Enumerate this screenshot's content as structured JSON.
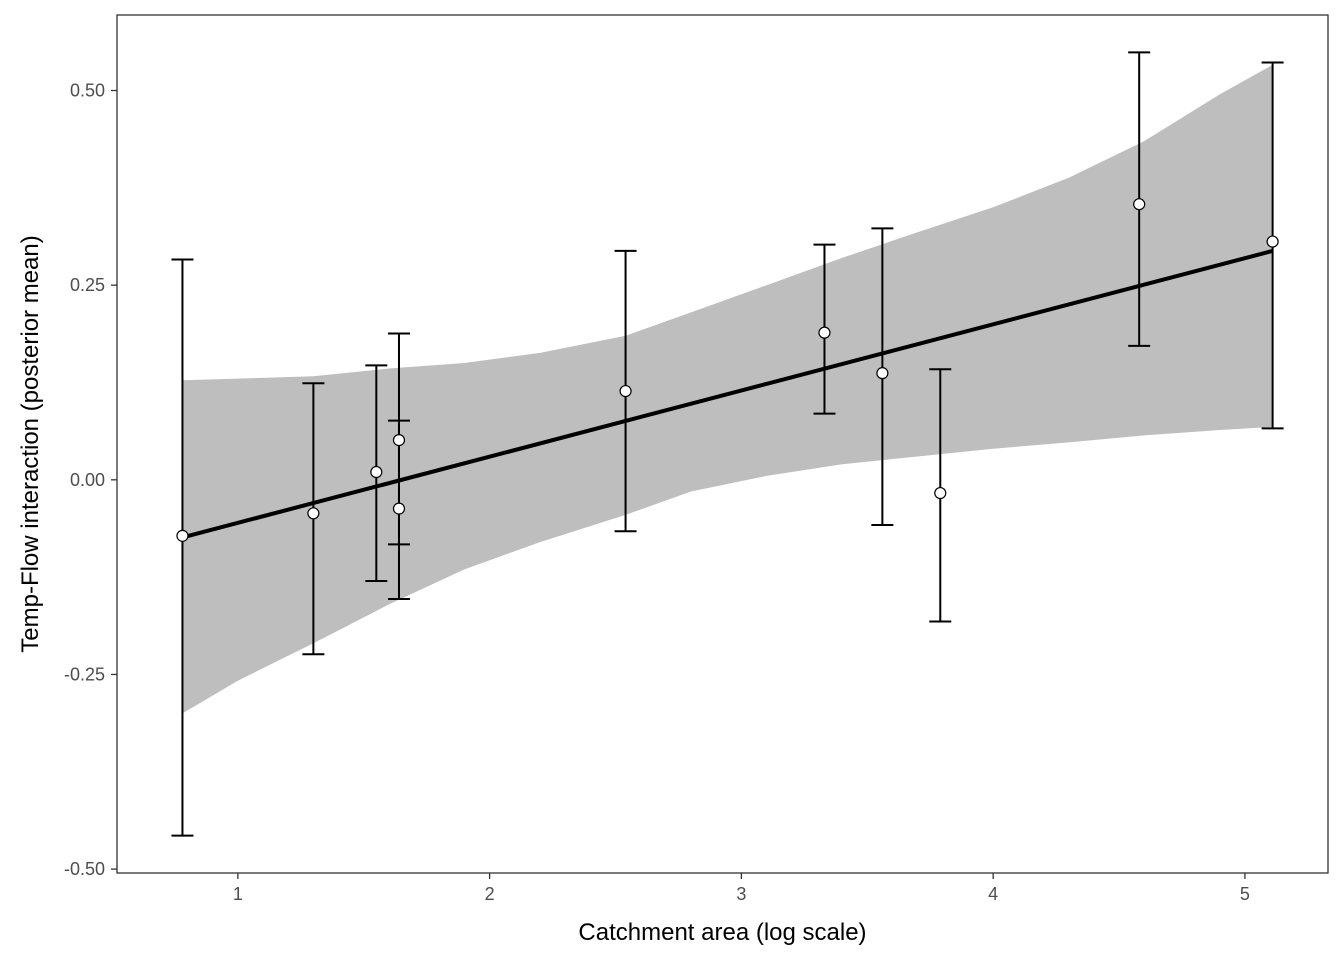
{
  "chart_data": {
    "type": "scatter",
    "title": "",
    "xlabel": "Catchment area (log scale)",
    "ylabel": "Temp-Flow interaction (posterior mean)",
    "xlim": [
      0.52,
      5.33
    ],
    "ylim": [
      -0.505,
      0.597
    ],
    "x_ticks": [
      1,
      2,
      3,
      4,
      5
    ],
    "x_tick_labels": [
      "1",
      "2",
      "3",
      "4",
      "5"
    ],
    "y_ticks": [
      -0.5,
      -0.25,
      0.0,
      0.25,
      0.5
    ],
    "y_tick_labels": [
      "-0.50",
      "-0.25",
      "0.00",
      "0.25",
      "0.50"
    ],
    "grid": false,
    "legend": "none",
    "points": [
      {
        "x": 0.78,
        "y": -0.072,
        "lower": -0.457,
        "upper": 0.283
      },
      {
        "x": 1.3,
        "y": -0.043,
        "lower": -0.224,
        "upper": 0.124
      },
      {
        "x": 1.55,
        "y": 0.01,
        "lower": -0.13,
        "upper": 0.147
      },
      {
        "x": 1.64,
        "y": 0.051,
        "lower": -0.083,
        "upper": 0.188
      },
      {
        "x": 1.64,
        "y": -0.037,
        "lower": -0.153,
        "upper": 0.076
      },
      {
        "x": 2.54,
        "y": 0.114,
        "lower": -0.066,
        "upper": 0.294
      },
      {
        "x": 3.33,
        "y": 0.189,
        "lower": 0.085,
        "upper": 0.302
      },
      {
        "x": 3.56,
        "y": 0.137,
        "lower": -0.058,
        "upper": 0.323
      },
      {
        "x": 3.79,
        "y": -0.017,
        "lower": -0.182,
        "upper": 0.142
      },
      {
        "x": 4.58,
        "y": 0.354,
        "lower": 0.172,
        "upper": 0.549
      },
      {
        "x": 5.11,
        "y": 0.306,
        "lower": 0.066,
        "upper": 0.536
      }
    ],
    "fit_line": {
      "x": [
        0.78,
        5.11
      ],
      "y": [
        -0.074,
        0.294
      ]
    },
    "confidence_band": {
      "x": [
        0.78,
        1.0,
        1.3,
        1.6,
        1.9,
        2.2,
        2.54,
        2.8,
        3.1,
        3.4,
        3.7,
        4.0,
        4.3,
        4.6,
        4.9,
        5.11
      ],
      "lower": [
        -0.3,
        -0.258,
        -0.21,
        -0.16,
        -0.115,
        -0.08,
        -0.045,
        -0.015,
        0.005,
        0.02,
        0.03,
        0.04,
        0.048,
        0.057,
        0.064,
        0.068
      ],
      "upper": [
        0.128,
        0.13,
        0.133,
        0.143,
        0.15,
        0.163,
        0.185,
        0.215,
        0.25,
        0.285,
        0.318,
        0.35,
        0.388,
        0.435,
        0.495,
        0.533
      ]
    },
    "colors": {
      "band": "#bebebe",
      "line": "#000000",
      "point_fill": "#ffffff",
      "point_stroke": "#000000",
      "panel_border": "#333333",
      "tick_text": "#4d4d4d"
    }
  }
}
